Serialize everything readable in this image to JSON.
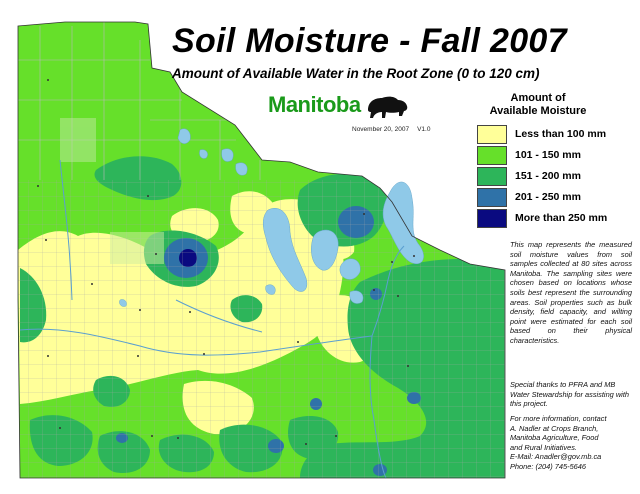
{
  "title": "Soil Moisture - Fall 2007",
  "subtitle": "Amount of Available Water in the Root Zone (0 to 120 cm)",
  "logo": "Manitoba",
  "date": "November 20, 2007",
  "version": "V1.0",
  "legend": {
    "title_lines": [
      "Amount of",
      "Available Moisture"
    ],
    "items": [
      {
        "label": "Less than 100 mm",
        "color": "#ffff99"
      },
      {
        "label": "101 - 150 mm",
        "color": "#66e02a"
      },
      {
        "label": "151 - 200 mm",
        "color": "#2db55a"
      },
      {
        "label": "201 - 250 mm",
        "color": "#2f72a8"
      },
      {
        "label": "More than 250 mm",
        "color": "#0a0a80"
      }
    ]
  },
  "notes": {
    "description": "This map represents the measured soil moisture values from soil samples collected at 80 sites across Manitoba. The sampling sites were chosen based on locations whose soils best represent the surrounding areas. Soil properties such as bulk density, field capacity, and wilting point were estimated for each soil based on their physical characteristics.",
    "thanks": "Special thanks to PFRA and MB Water Stewardship for assisting with this project.",
    "contact_lines": [
      "For more information, contact",
      "A. Nadler at Crops Branch,",
      "Manitoba Agriculture, Food",
      "and Rural Initiatives.",
      "E-Mail: Anadler@gov.mb.ca",
      "Phone: (204) 745-5646"
    ]
  },
  "colors": {
    "water": "#8fc9e8",
    "boundary": "#c8c8c8",
    "logo": "#1a9a1a"
  }
}
